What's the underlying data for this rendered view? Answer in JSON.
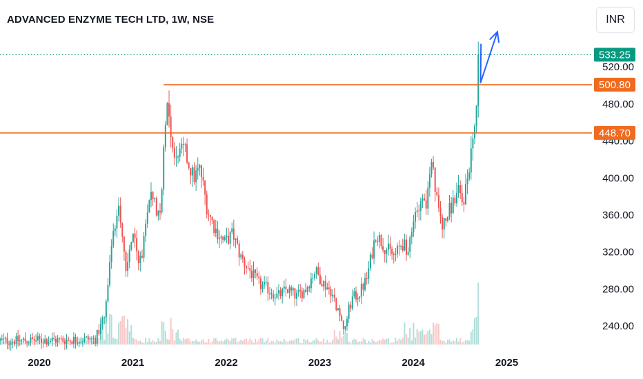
{
  "header": {
    "title": "ADVANCED ENZYME TECH LTD, 1W, NSE",
    "currency_button": "INR"
  },
  "colors": {
    "up": "#26a69a",
    "down": "#ef5350",
    "up_volume": "#b2dfdb",
    "down_volume": "#f8c8c7",
    "last_price": "#089981",
    "level_line": "#f06b1f",
    "arrow": "#2962ff"
  },
  "chart_data": {
    "type": "candlestick",
    "title": "ADVANCED ENZYME TECH LTD, 1W, NSE",
    "y_axis": {
      "side": "right",
      "min": 220,
      "max": 570,
      "ticks": [
        240,
        280,
        320,
        360,
        400,
        440,
        480,
        520
      ]
    },
    "x_axis": {
      "labels": [
        "2020",
        "2021",
        "2022",
        "2023",
        "2024",
        "2025"
      ],
      "years": [
        2020,
        2021,
        2022,
        2023,
        2024,
        2025
      ]
    },
    "visible_period": {
      "start": 2019.6,
      "end": 2025.0
    },
    "last_price": {
      "value": 533.25,
      "label": "533.25"
    },
    "horizontal_levels": [
      {
        "value": 500.8,
        "label": "500.80",
        "start": 2021.33
      },
      {
        "value": 448.7,
        "label": "448.70",
        "start": 2019.6
      }
    ],
    "annotation_arrow": {
      "points": [
        [
          2024.72,
          503
        ],
        [
          2024.9,
          558
        ]
      ]
    },
    "price_anchors": [
      [
        2019.6,
        224
      ],
      [
        2020.25,
        225
      ],
      [
        2020.6,
        226
      ],
      [
        2020.7,
        250
      ],
      [
        2020.78,
        330
      ],
      [
        2020.85,
        375
      ],
      [
        2020.93,
        300
      ],
      [
        2021.0,
        345
      ],
      [
        2021.06,
        305
      ],
      [
        2021.12,
        330
      ],
      [
        2021.2,
        390
      ],
      [
        2021.28,
        355
      ],
      [
        2021.32,
        410
      ],
      [
        2021.36,
        490
      ],
      [
        2021.4,
        455
      ],
      [
        2021.45,
        420
      ],
      [
        2021.55,
        430
      ],
      [
        2021.65,
        400
      ],
      [
        2021.72,
        410
      ],
      [
        2021.8,
        365
      ],
      [
        2021.88,
        345
      ],
      [
        2021.98,
        330
      ],
      [
        2022.07,
        340
      ],
      [
        2022.15,
        315
      ],
      [
        2022.25,
        300
      ],
      [
        2022.35,
        285
      ],
      [
        2022.45,
        280
      ],
      [
        2022.55,
        272
      ],
      [
        2022.65,
        280
      ],
      [
        2022.75,
        272
      ],
      [
        2022.85,
        280
      ],
      [
        2022.95,
        300
      ],
      [
        2023.05,
        285
      ],
      [
        2023.12,
        278
      ],
      [
        2023.2,
        255
      ],
      [
        2023.25,
        238
      ],
      [
        2023.35,
        270
      ],
      [
        2023.42,
        275
      ],
      [
        2023.5,
        290
      ],
      [
        2023.6,
        340
      ],
      [
        2023.7,
        325
      ],
      [
        2023.8,
        315
      ],
      [
        2023.88,
        330
      ],
      [
        2023.95,
        320
      ],
      [
        2024.02,
        360
      ],
      [
        2024.08,
        380
      ],
      [
        2024.14,
        372
      ],
      [
        2024.2,
        415
      ],
      [
        2024.25,
        375
      ],
      [
        2024.32,
        348
      ],
      [
        2024.4,
        368
      ],
      [
        2024.48,
        385
      ],
      [
        2024.53,
        372
      ],
      [
        2024.58,
        400
      ],
      [
        2024.62,
        430
      ],
      [
        2024.66,
        460
      ],
      [
        2024.69,
        475
      ],
      [
        2024.71,
        533.25
      ]
    ],
    "volume_scale_max": 1.0
  }
}
